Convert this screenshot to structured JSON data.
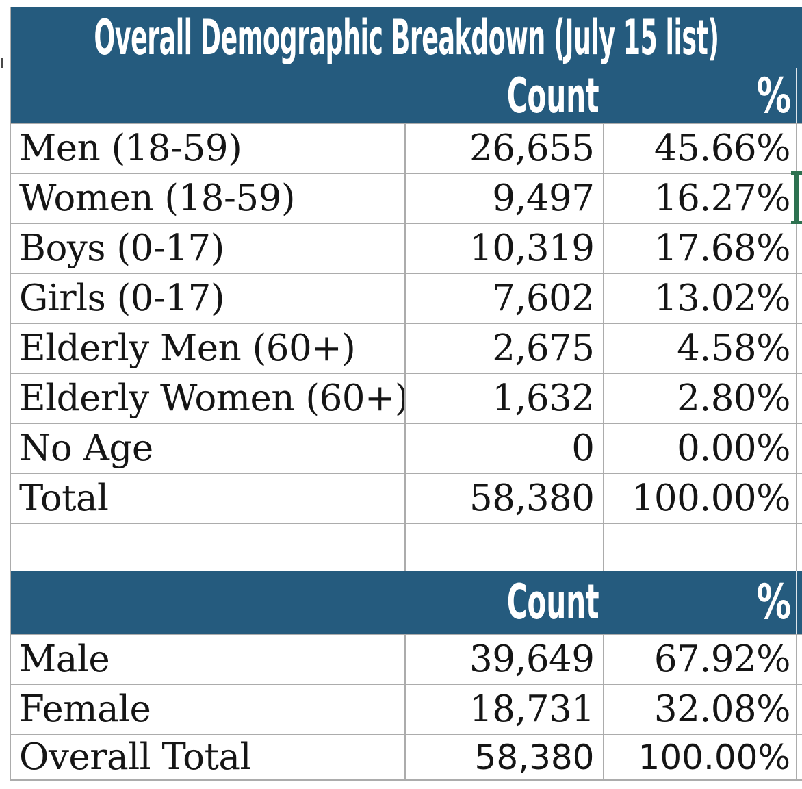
{
  "title": "Overall Demographic Breakdown (July 15 list)",
  "colors": {
    "header_bg": "#255B7E",
    "header_text": "#FFFFFF",
    "gridline": "#ACACAC",
    "selection_green": "#2D7150",
    "text": "#151515"
  },
  "table1": {
    "header": {
      "count": "Count",
      "pct": "%"
    },
    "rows": [
      {
        "label": "Men (18-59)",
        "count": "26,655",
        "pct": "45.66%"
      },
      {
        "label": "Women (18-59)",
        "count": "9,497",
        "pct": "16.27%"
      },
      {
        "label": "Boys (0-17)",
        "count": "10,319",
        "pct": "17.68%"
      },
      {
        "label": "Girls (0-17)",
        "count": "7,602",
        "pct": "13.02%"
      },
      {
        "label": "Elderly Men (60+)",
        "count": "2,675",
        "pct": "4.58%"
      },
      {
        "label": "Elderly Women (60+)",
        "count": "1,632",
        "pct": "2.80%"
      },
      {
        "label": "No Age",
        "count": "0",
        "pct": "0.00%"
      },
      {
        "label": "Total",
        "count": "58,380",
        "pct": "100.00%"
      }
    ]
  },
  "table2": {
    "header": {
      "count": "Count",
      "pct": "%"
    },
    "rows": [
      {
        "label": "Male",
        "count": "39,649",
        "pct": "67.92%"
      },
      {
        "label": "Female",
        "count": "18,731",
        "pct": "32.08%"
      },
      {
        "label": "Overall Total",
        "count": "58,380",
        "pct": "100.00%"
      }
    ]
  }
}
